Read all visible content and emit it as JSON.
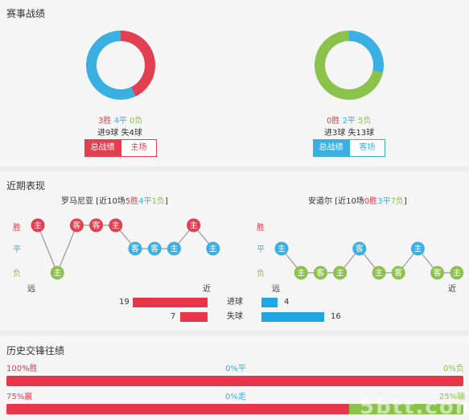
{
  "colors": {
    "win": "#e04050",
    "draw": "#3ab0e2",
    "loss": "#8bc34a",
    "bar_red": "#e8354a",
    "bar_blue": "#1fa7e4"
  },
  "section1": {
    "title": "赛事战绩",
    "left": {
      "chart_data": {
        "type": "pie",
        "categories": [
          "胜",
          "平",
          "负"
        ],
        "values": [
          3,
          4,
          0
        ]
      },
      "wins": "3胜",
      "draws": "4平",
      "losses": "0负",
      "goals": "进9球",
      "conceded": "失4球",
      "tab_overall": "总战绩",
      "tab_venue": "主场"
    },
    "right": {
      "chart_data": {
        "type": "pie",
        "categories": [
          "胜",
          "平",
          "负"
        ],
        "values": [
          0,
          2,
          5
        ]
      },
      "wins": "0胜",
      "draws": "2平",
      "losses": "5负",
      "goals": "进3球",
      "conceded": "失13球",
      "tab_overall": "总战绩",
      "tab_venue": "客场"
    }
  },
  "section2": {
    "title": "近期表现",
    "left": {
      "team": "罗马尼亚",
      "summary_prefix": " [近10场",
      "wins": "5胜",
      "draws": "4平",
      "losses": "1负",
      "summary_suffix": "]",
      "y_labels": [
        "胜",
        "平",
        "负"
      ],
      "far": "远",
      "near": "近",
      "results": [
        "W",
        "L",
        "W",
        "W",
        "W",
        "D",
        "D",
        "D",
        "W",
        "D"
      ],
      "venues": [
        "主",
        "主",
        "客",
        "客",
        "主",
        "客",
        "客",
        "主",
        "主",
        "主"
      ]
    },
    "right": {
      "team": "安道尔",
      "summary_prefix": " [近10场",
      "wins": "0胜",
      "draws": "3平",
      "losses": "7负",
      "summary_suffix": "]",
      "y_labels": [
        "胜",
        "平",
        "负"
      ],
      "far": "远",
      "near": "近",
      "results": [
        "D",
        "L",
        "L",
        "L",
        "D",
        "L",
        "L",
        "D",
        "L",
        "L"
      ],
      "venues": [
        "主",
        "主",
        "客",
        "主",
        "客",
        "主",
        "客",
        "主",
        "客",
        "主"
      ]
    },
    "goals_label": "进球",
    "conceded_label": "失球",
    "left_goals": 19,
    "left_conceded": 7,
    "right_goals": 4,
    "right_conceded": 16
  },
  "section3": {
    "title": "历史交锋往绩",
    "row1": {
      "left": "100%胜",
      "mid": "0%平",
      "right": "0%负",
      "fraction": 1.0
    },
    "row2": {
      "left": "75%赢",
      "mid": "0%走",
      "right": "25%输",
      "fraction": 0.75
    }
  },
  "watermark": "5btt.com"
}
